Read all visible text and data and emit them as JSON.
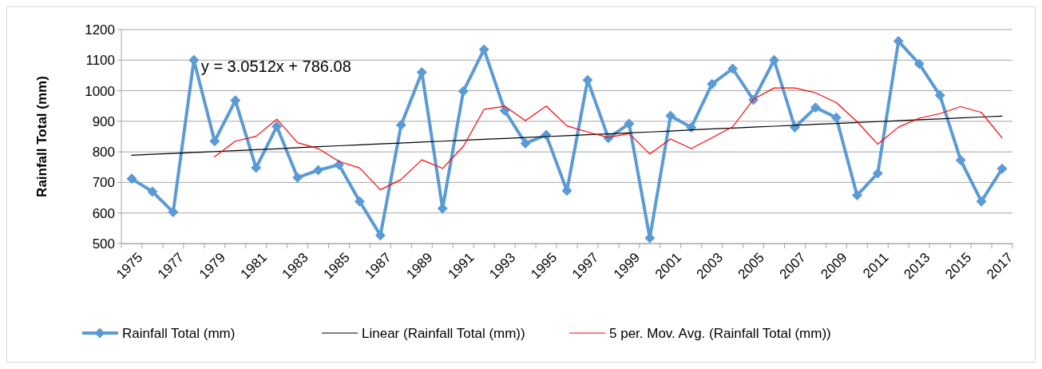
{
  "chart_data": {
    "type": "line",
    "ylabel": "Rainfall Total (mm)",
    "categories": [
      "1975",
      null,
      "1977",
      null,
      "1979",
      null,
      "1981",
      null,
      "1983",
      null,
      "1985",
      null,
      "1987",
      null,
      "1989",
      null,
      "1991",
      null,
      "1993",
      null,
      "1995",
      null,
      "1997",
      null,
      "1999",
      null,
      "2001",
      null,
      "2003",
      null,
      "2005",
      null,
      "2007",
      null,
      "2009",
      null,
      "2011",
      null,
      "2013",
      null,
      "2015",
      null,
      "2017"
    ],
    "series": [
      {
        "name": "Rainfall Total (mm)",
        "color": "#5b9bd5",
        "values": [
          712,
          670,
          603,
          1100,
          835,
          968,
          748,
          883,
          716,
          740,
          758,
          638,
          527,
          888,
          1060,
          615,
          998,
          1135,
          935,
          828,
          855,
          673,
          1035,
          845,
          892,
          518,
          918,
          880,
          1022,
          1072,
          970,
          1100,
          880,
          945,
          912,
          658,
          730,
          1162,
          1088,
          985,
          773,
          638,
          745
        ]
      },
      {
        "name": "Linear (Rainfall Total (mm))",
        "color": "#000000",
        "marker": "none",
        "values": [
          789,
          792,
          795,
          798,
          801,
          804,
          807,
          810,
          814,
          817,
          820,
          823,
          826,
          829,
          832,
          835,
          838,
          841,
          844,
          847,
          850,
          853,
          856,
          859,
          862,
          865,
          868,
          872,
          875,
          878,
          881,
          884,
          887,
          890,
          893,
          896,
          899,
          902,
          905,
          908,
          911,
          914,
          917
        ]
      },
      {
        "name": "5 per. Mov. Avg. (Rainfall Total (mm))",
        "color": "#ff0000",
        "marker": "none",
        "values": [
          null,
          null,
          null,
          null,
          784,
          835,
          851,
          907,
          830,
          811,
          769,
          747,
          676,
          710,
          774,
          746,
          818,
          939,
          949,
          902,
          950,
          885,
          865,
          847,
          860,
          793,
          842,
          811,
          846,
          882,
          972,
          1009,
          1009,
          993,
          961,
          899,
          825,
          881,
          910,
          925,
          948,
          929,
          846
        ]
      }
    ],
    "annotations": [
      "y = 3.0512x + 786.08"
    ],
    "ylim": [
      500,
      1200
    ],
    "yticks": [
      500,
      600,
      700,
      800,
      900,
      1000,
      1100,
      1200
    ],
    "grid": "y",
    "legend": "bottom",
    "marker": "diamond",
    "line_style": "solid"
  }
}
